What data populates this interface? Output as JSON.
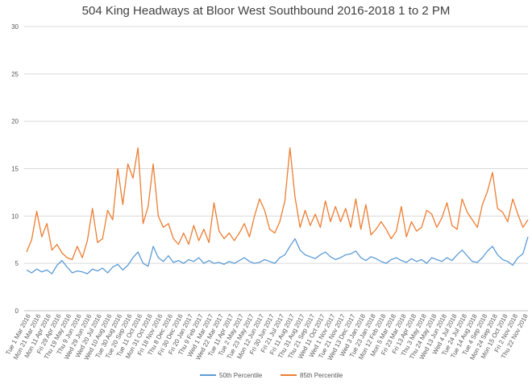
{
  "chart_data": {
    "type": "line",
    "title": "504 King Headways at Bloor West Southbound 2016-2018 1 to 2 PM",
    "xlabel": "",
    "ylabel": "",
    "ylim": [
      0,
      30
    ],
    "y_ticks": [
      0,
      5,
      10,
      15,
      20,
      25,
      30
    ],
    "grid": "horizontal",
    "legend_position": "bottom",
    "x_tick_labels": [
      "Tue 1 Mar 2016",
      "Mon 21 Mar 2016",
      "Mon 11 Apr 2016",
      "Fri 29 Apr 2016",
      "Thu 19 May 2016",
      "Thu 9 Jun 2016",
      "Wed 29 Jun 2016",
      "Wed 20 Jul 2016",
      "Wed 10 Aug 2016",
      "Tue 30 Aug 2016",
      "Tue 20 Sep 2016",
      "Tue 11 Oct 2016",
      "Mon 31 Oct 2016",
      "Fri 18 Nov 2016",
      "Thu 8 Dec 2016",
      "Fri 30 Dec 2016",
      "Fri 20 Jan 2017",
      "Thu 9 Feb 2017",
      "Wed 1 Mar 2017",
      "Wed 22 Mar 2017",
      "Tue 11 Apr 2017",
      "Tue 2 May 2017",
      "Tue 23 May 2017",
      "Mon 12 Jun 2017",
      "Fri 30 Jun 2017",
      "Fri 21 Jul 2017",
      "Fri 11 Aug 2017",
      "Thu 31 Aug 2017",
      "Thu 21 Sep 2017",
      "Wed 11 Oct 2017",
      "Wed 1 Nov 2017",
      "Tue 21 Nov 2017",
      "Wed 13 Dec 2017",
      "Wed 3 Jan 2018",
      "Tue 23 Jan 2018",
      "Mon 12 Feb 2018",
      "Mon 5 Mar 2018",
      "Fri 23 Mar 2018",
      "Fri 13 Apr 2018",
      "Thu 3 May 2018",
      "Thu 24 May 2018",
      "Wed 13 Jun 2018",
      "Wed 4 Jul 2018",
      "Tue 24 Jul 2018",
      "Tue 14 Aug 2018",
      "Tue 4 Sep 2018",
      "Mon 24 Sep 2018",
      "Mon 15 Oct 2018",
      "Fri 2 Nov 2018",
      "Thu 22 Nov 2018"
    ],
    "series": [
      {
        "name": "50th Percentile",
        "color": "#5b9bd5",
        "values": [
          4.3,
          4.0,
          4.4,
          4.1,
          4.3,
          3.9,
          4.8,
          5.3,
          4.6,
          4.0,
          4.2,
          4.1,
          3.9,
          4.4,
          4.2,
          4.5,
          4.0,
          4.6,
          4.9,
          4.3,
          4.8,
          5.6,
          6.2,
          5.0,
          4.7,
          6.8,
          5.6,
          5.2,
          5.8,
          5.1,
          5.3,
          5.0,
          5.4,
          5.2,
          5.6,
          5.0,
          5.3,
          5.0,
          5.1,
          4.9,
          5.2,
          5.0,
          5.3,
          5.6,
          5.2,
          5.0,
          5.1,
          5.4,
          5.2,
          5.0,
          5.6,
          5.9,
          6.8,
          7.6,
          6.4,
          5.9,
          5.7,
          5.5,
          5.9,
          6.2,
          5.7,
          5.4,
          5.6,
          5.9,
          6.0,
          6.3,
          5.6,
          5.3,
          5.7,
          5.5,
          5.2,
          5.0,
          5.4,
          5.6,
          5.3,
          5.1,
          5.5,
          5.2,
          5.4,
          5.0,
          5.6,
          5.4,
          5.2,
          5.6,
          5.3,
          5.9,
          6.4,
          5.8,
          5.2,
          5.1,
          5.6,
          6.3,
          6.8,
          5.9,
          5.4,
          5.2,
          4.8,
          5.6,
          6.0,
          7.8
        ]
      },
      {
        "name": "85th Percentile",
        "color": "#ed7d31",
        "values": [
          6.2,
          7.5,
          10.5,
          7.8,
          9.2,
          6.4,
          7.0,
          6.1,
          5.6,
          5.4,
          6.8,
          5.6,
          7.4,
          10.8,
          7.2,
          7.6,
          10.6,
          9.6,
          15.0,
          11.2,
          15.5,
          14.0,
          17.2,
          9.2,
          11.0,
          15.5,
          10.0,
          8.8,
          9.2,
          7.6,
          7.0,
          8.2,
          7.0,
          9.0,
          7.4,
          8.6,
          7.2,
          11.4,
          8.4,
          7.6,
          8.2,
          7.4,
          8.2,
          9.2,
          7.8,
          10.0,
          11.8,
          10.6,
          8.6,
          8.2,
          9.4,
          11.6,
          17.2,
          12.0,
          8.8,
          10.6,
          9.0,
          10.2,
          8.8,
          11.6,
          9.4,
          11.0,
          9.4,
          10.8,
          8.8,
          11.8,
          8.6,
          11.2,
          8.0,
          8.6,
          9.4,
          8.6,
          7.6,
          8.4,
          11.0,
          7.8,
          9.4,
          8.4,
          8.8,
          10.6,
          10.2,
          8.8,
          9.8,
          11.4,
          9.0,
          8.6,
          11.8,
          10.4,
          9.6,
          8.8,
          11.2,
          12.6,
          14.6,
          10.8,
          10.4,
          9.4,
          11.8,
          10.2,
          8.8,
          9.6
        ]
      }
    ]
  }
}
